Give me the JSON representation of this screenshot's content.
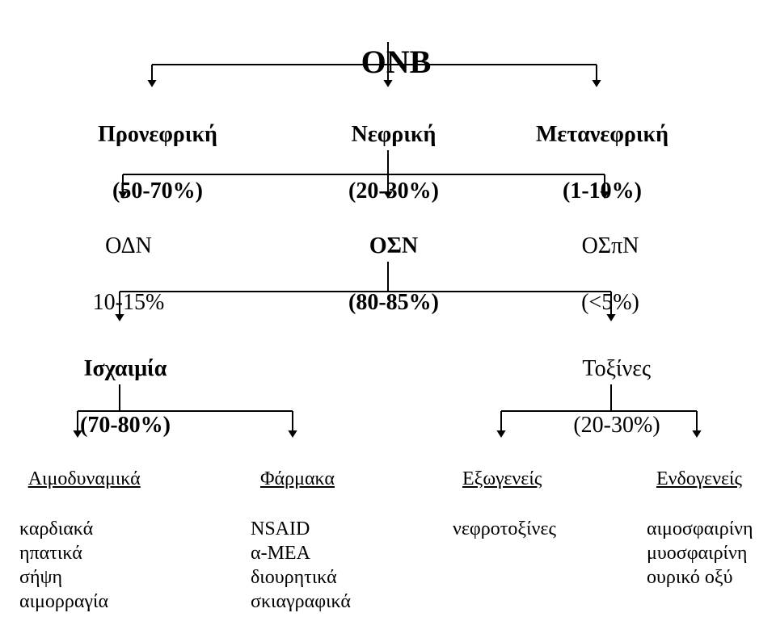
{
  "diagram": {
    "type": "tree",
    "background_color": "#ffffff",
    "line_color": "#000000",
    "line_width": 2,
    "arrow_size": 9,
    "font_family": "Times New Roman",
    "root": {
      "title": "ΟΝΒ",
      "fontsize": 40,
      "bold": true
    },
    "level1": [
      {
        "title": "Προνεφρική",
        "sub": "(50-70%)",
        "fontsize": 28,
        "bold": true
      },
      {
        "title": "Νεφρική",
        "sub": "(20-30%)",
        "fontsize": 28,
        "bold": true
      },
      {
        "title": "Μετανεφρική",
        "sub": "(1-10%)",
        "fontsize": 28,
        "bold": true
      }
    ],
    "level2": [
      {
        "title": "ΟΔΝ",
        "sub": "10-15%",
        "fontsize": 28,
        "bold": false
      },
      {
        "title": "ΟΣΝ",
        "sub": "(80-85%)",
        "fontsize": 28,
        "bold": true
      },
      {
        "title": "ΟΣπΝ",
        "sub": "(<5%)",
        "fontsize": 28,
        "bold": false
      }
    ],
    "level3": [
      {
        "title": "Ισχαιμία",
        "sub": "(70-80%)",
        "fontsize": 28,
        "bold": true
      },
      {
        "title": "Τοξίνες",
        "sub": "(20-30%)",
        "fontsize": 28,
        "bold": false
      }
    ],
    "leaves": [
      {
        "head": "Αιμοδυναμικά",
        "items": [
          "καρδιακά",
          "ηπατικά",
          "σήψη",
          "αιμορραγία"
        ],
        "fontsize": 24
      },
      {
        "head": "Φάρμακα",
        "items": [
          "NSAID",
          "α-ΜΕΑ",
          "διουρητικά",
          "σκιαγραφικά"
        ],
        "fontsize": 24
      },
      {
        "head": "Εξωγενείς",
        "items": [
          "νεφροτοξίνες"
        ],
        "fontsize": 24
      },
      {
        "head": "Ενδογενείς",
        "items": [
          "αιμοσφαιρίνη",
          "μυοσφαιρίνη",
          "ουρικό οξύ"
        ],
        "fontsize": 24
      }
    ],
    "edges": [
      {
        "from": "root",
        "to": "l1-a"
      },
      {
        "from": "root",
        "to": "l1-b"
      },
      {
        "from": "root",
        "to": "l1-c"
      },
      {
        "from": "l1-b",
        "to": "l2-a"
      },
      {
        "from": "l1-b",
        "to": "l2-b"
      },
      {
        "from": "l1-b",
        "to": "l2-c"
      },
      {
        "from": "l2-b",
        "to": "l3-a"
      },
      {
        "from": "l2-b",
        "to": "l3-b"
      },
      {
        "from": "l3-a",
        "to": "leaf-a"
      },
      {
        "from": "l3-a",
        "to": "leaf-b"
      },
      {
        "from": "l3-b",
        "to": "leaf-c"
      },
      {
        "from": "l3-b",
        "to": "leaf-d"
      }
    ]
  }
}
